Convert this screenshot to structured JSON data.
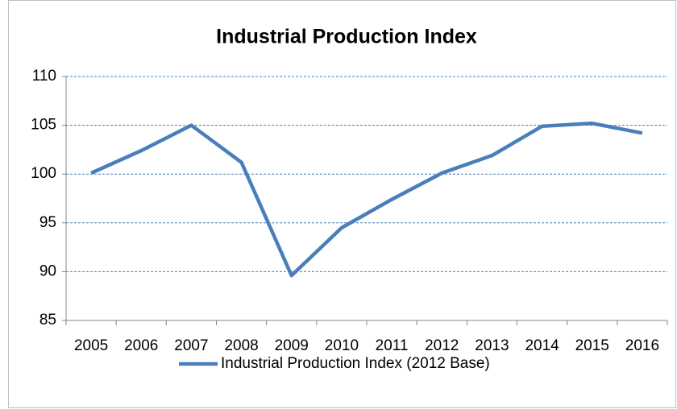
{
  "chart_data": {
    "type": "line",
    "title": "Industrial Production Index",
    "categories": [
      "2005",
      "2006",
      "2007",
      "2008",
      "2009",
      "2010",
      "2011",
      "2012",
      "2013",
      "2014",
      "2015",
      "2016"
    ],
    "series": [
      {
        "name": "Industrial Production Index (2012 Base)",
        "color": "#4a7ebb",
        "values": [
          100.1,
          102.4,
          105.0,
          101.2,
          89.6,
          94.5,
          97.4,
          100.1,
          101.9,
          104.9,
          105.2,
          104.2
        ]
      }
    ],
    "ylim": [
      85,
      110
    ],
    "yticks": [
      85,
      90,
      95,
      100,
      105,
      110
    ],
    "grid": true,
    "legend": "bottom"
  }
}
